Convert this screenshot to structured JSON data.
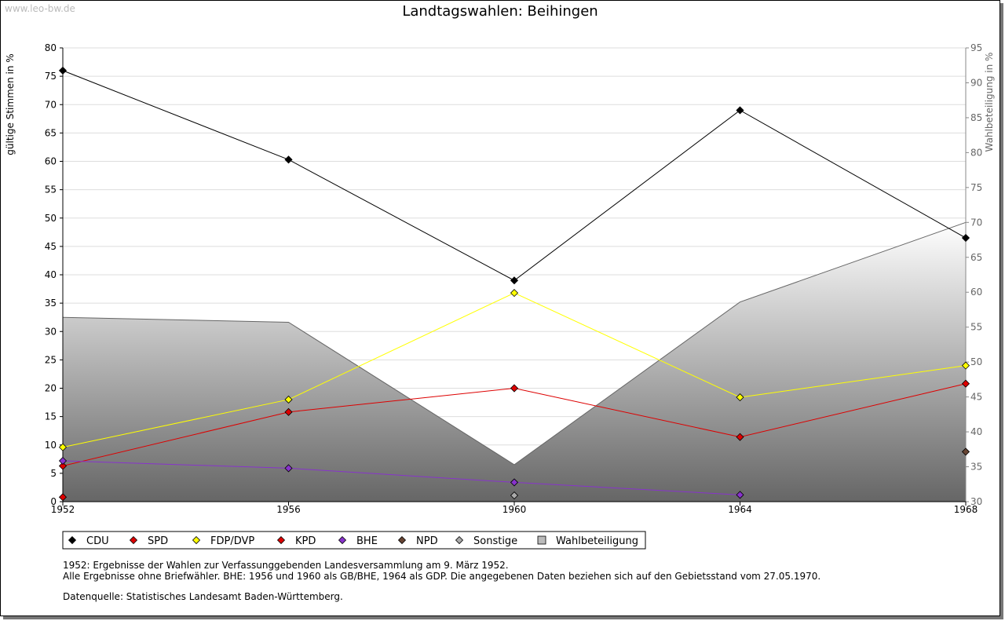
{
  "watermark": "www.leo-bw.de",
  "chart_data": {
    "type": "line",
    "title": "Landtagswahlen: Beihingen",
    "ylabel": "gültige Stimmen in %",
    "y2label": "Wahlbeteiligung in %",
    "ylim": [
      0,
      80
    ],
    "y2lim": [
      30,
      95
    ],
    "yticks": [
      "0",
      "5",
      "10",
      "15",
      "20",
      "25",
      "30",
      "35",
      "40",
      "45",
      "50",
      "55",
      "60",
      "65",
      "70",
      "75",
      "80"
    ],
    "y2ticks": [
      "30",
      "35",
      "40",
      "45",
      "50",
      "55",
      "60",
      "65",
      "70",
      "75",
      "80",
      "85",
      "90",
      "95"
    ],
    "x": [
      "1952",
      "1956",
      "1960",
      "1964",
      "1968"
    ],
    "series": [
      {
        "name": "CDU",
        "color": "#000000",
        "values": [
          76.0,
          60.3,
          39.0,
          69.0,
          46.5
        ]
      },
      {
        "name": "SPD",
        "color": "#dd0000",
        "values": [
          6.3,
          15.8,
          20.0,
          11.4,
          20.8
        ]
      },
      {
        "name": "FDP/DVP",
        "color": "#ffff00",
        "values": [
          9.6,
          18.0,
          36.8,
          18.4,
          24.0
        ]
      },
      {
        "name": "KPD",
        "color": "#dd0000",
        "values": [
          0.8,
          null,
          null,
          null,
          null
        ]
      },
      {
        "name": "BHE",
        "color": "#8833cc",
        "values": [
          7.2,
          5.9,
          3.4,
          1.2,
          null
        ]
      },
      {
        "name": "NPD",
        "color": "#664433",
        "values": [
          null,
          null,
          null,
          null,
          8.8
        ]
      },
      {
        "name": "Sonstige",
        "color": "#aaaaaa",
        "values": [
          null,
          null,
          1.1,
          null,
          null
        ]
      }
    ],
    "area_series": {
      "name": "Wahlbeteiligung",
      "axis": "right",
      "values": [
        56.4,
        55.7,
        35.3,
        58.6,
        70.0
      ]
    },
    "legend": [
      "CDU",
      "SPD",
      "FDP/DVP",
      "KPD",
      "BHE",
      "NPD",
      "Sonstige",
      "Wahlbeteiligung"
    ],
    "legend_position": "bottom-left",
    "grid": true
  },
  "notes": [
    "1952: Ergebnisse der Wahlen zur Verfassunggebenden Landesversammlung am 9. März 1952.",
    "Alle Ergebnisse ohne Briefwähler. BHE: 1956 und 1960 als GB/BHE, 1964 als GDP. Die angegebenen Daten beziehen sich auf den Gebietsstand vom 27.05.1970."
  ],
  "source": "Datenquelle: Statistisches Landesamt Baden-Württemberg."
}
